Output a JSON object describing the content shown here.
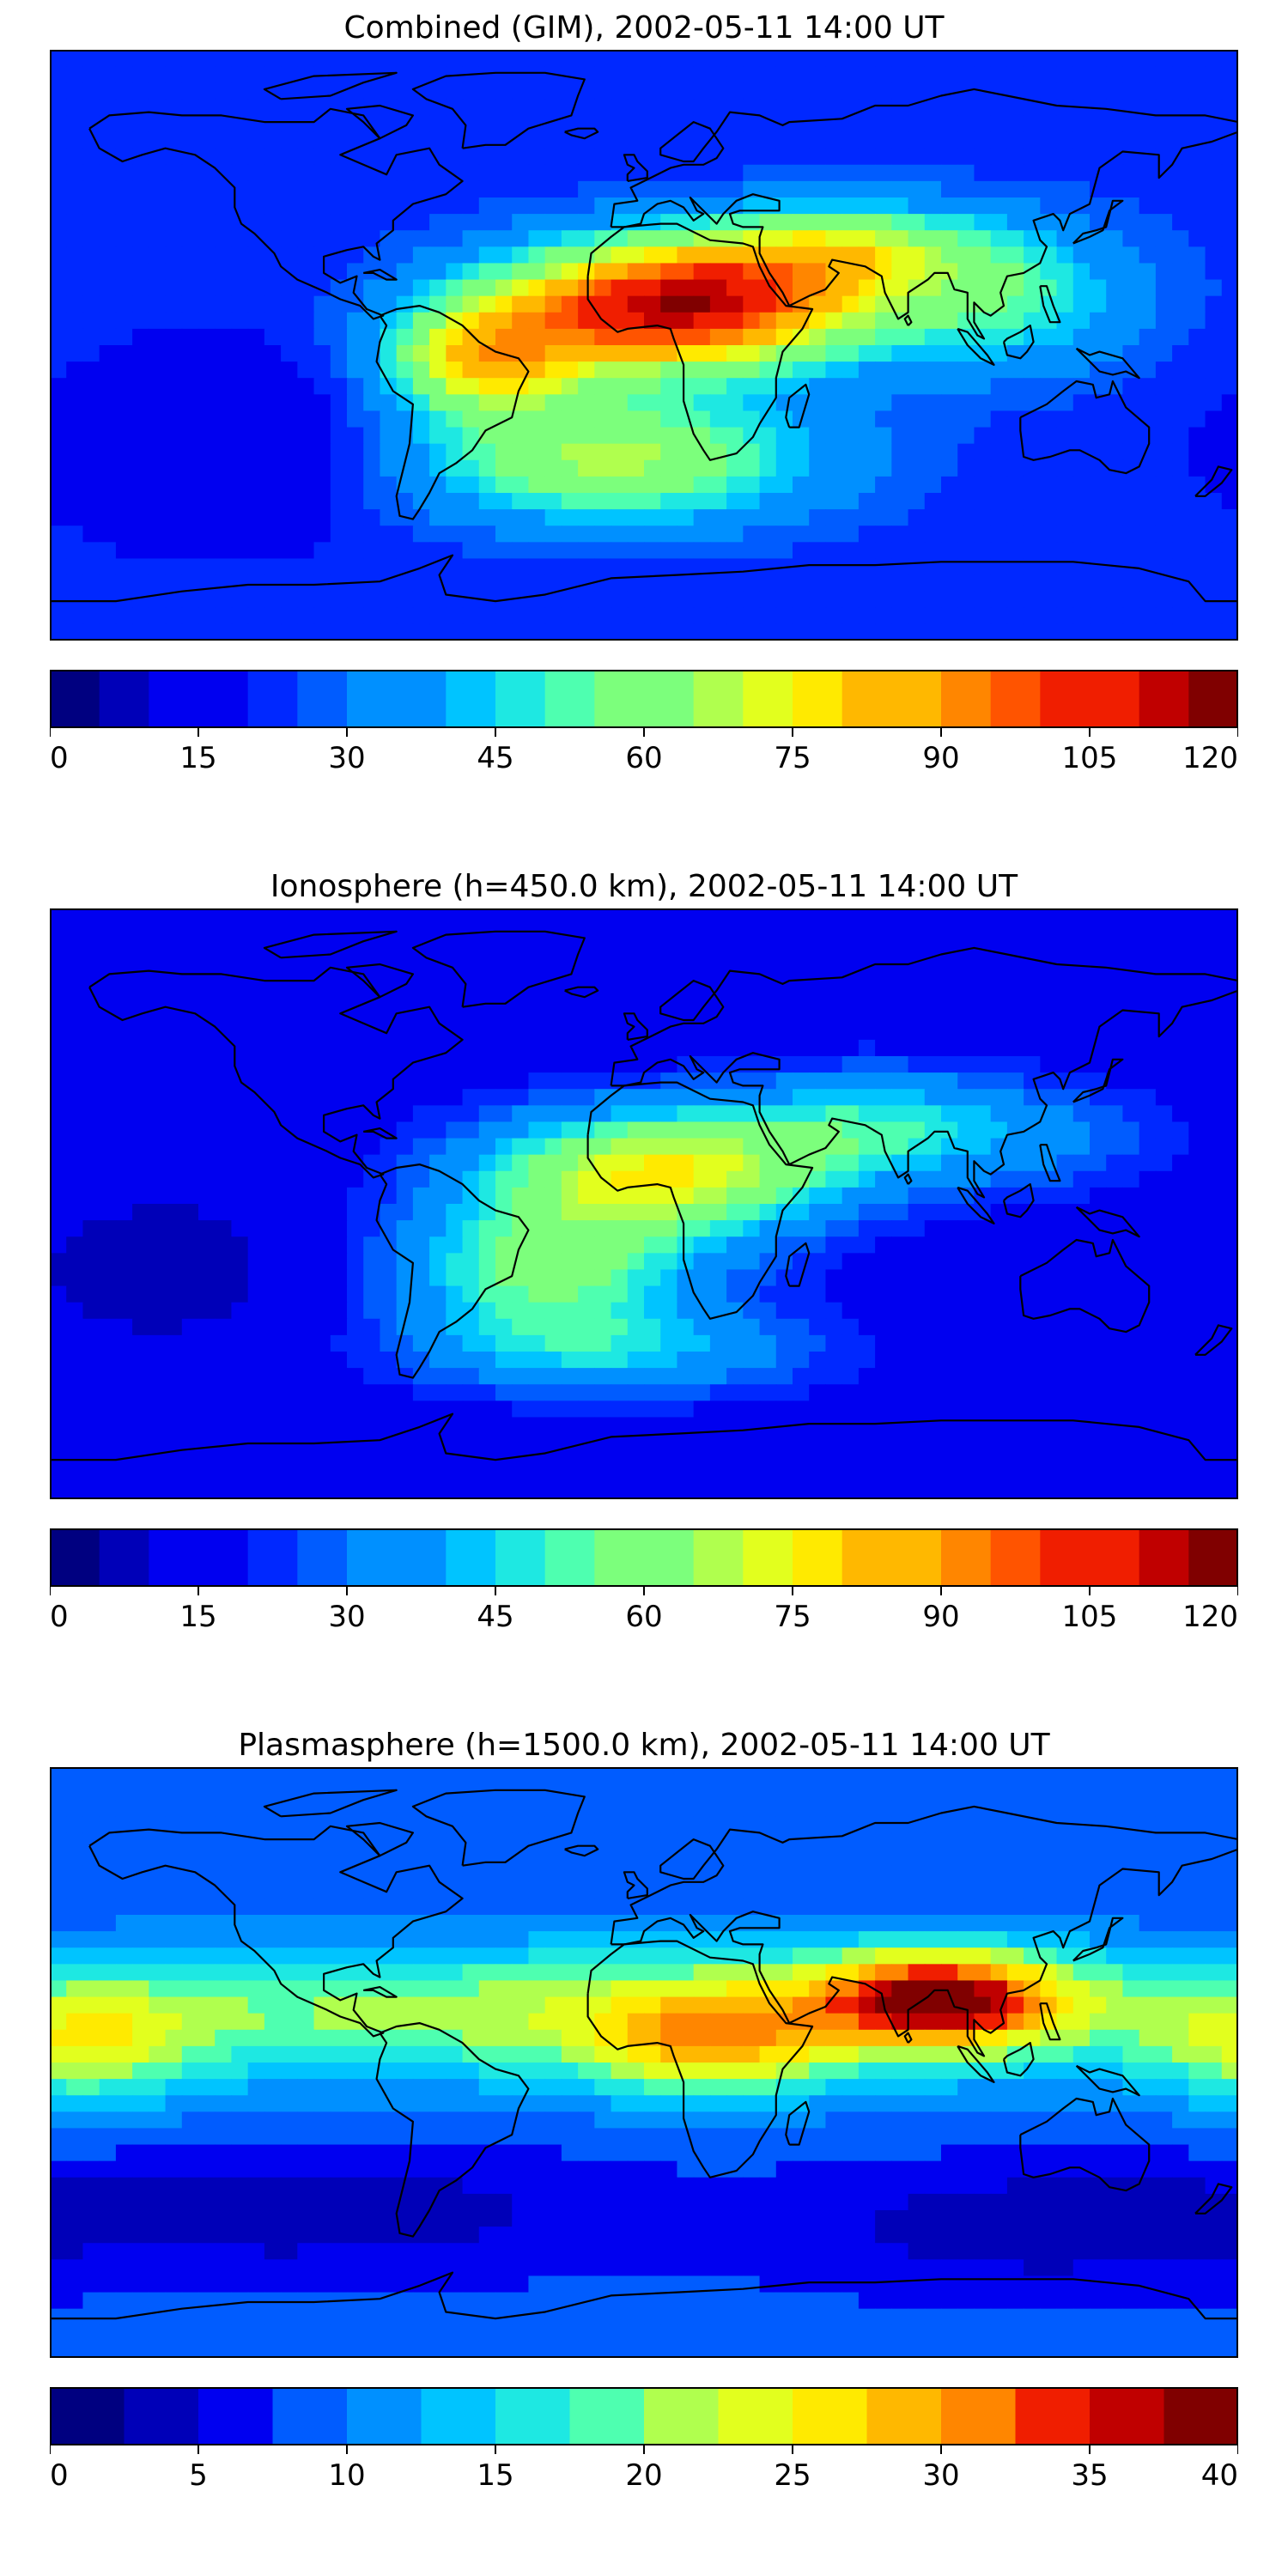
{
  "panels": [
    {
      "title": "Combined (GIM), 2002-05-11 14:00 UT",
      "colorbar": {
        "min": 0,
        "max": 120,
        "levels": 24,
        "ticks": [
          "0",
          "15",
          "30",
          "45",
          "60",
          "75",
          "90",
          "105",
          "120"
        ]
      },
      "field": {
        "background": 22,
        "lon_wrap": true,
        "blobs": [
          {
            "lon": 10,
            "lat": 12,
            "amp": 92,
            "slon": 40,
            "slat": 14
          },
          {
            "lon": -50,
            "lat": -5,
            "amp": 50,
            "slon": 22,
            "slat": 12
          },
          {
            "lon": -10,
            "lat": -35,
            "amp": 45,
            "slon": 45,
            "slat": 14
          },
          {
            "lon": 60,
            "lat": 30,
            "amp": 35,
            "slon": 30,
            "slat": 10
          },
          {
            "lon": 110,
            "lat": 15,
            "amp": 28,
            "slon": 30,
            "slat": 16
          },
          {
            "lon": -120,
            "lat": -30,
            "amp": -12,
            "slon": 40,
            "slat": 20
          }
        ]
      }
    },
    {
      "title": "Ionosphere  (h=450.0 km), 2002-05-11 14:00 UT",
      "colorbar": {
        "min": 0,
        "max": 120,
        "levels": 24,
        "ticks": [
          "0",
          "15",
          "30",
          "45",
          "60",
          "75",
          "90",
          "105",
          "120"
        ]
      },
      "field": {
        "background": 15,
        "lon_wrap": true,
        "blobs": [
          {
            "lon": 5,
            "lat": 10,
            "amp": 58,
            "slon": 40,
            "slat": 14
          },
          {
            "lon": -30,
            "lat": -20,
            "amp": 40,
            "slon": 35,
            "slat": 15
          },
          {
            "lon": -10,
            "lat": -45,
            "amp": 25,
            "slon": 45,
            "slat": 10
          },
          {
            "lon": 70,
            "lat": 25,
            "amp": 25,
            "slon": 30,
            "slat": 12
          },
          {
            "lon": 120,
            "lat": 20,
            "amp": 15,
            "slon": 30,
            "slat": 12
          },
          {
            "lon": -140,
            "lat": -20,
            "amp": -8,
            "slon": 40,
            "slat": 20
          }
        ]
      }
    },
    {
      "title": "Plasmasphere (h=1500.0 km), 2002-05-11 14:00 UT",
      "colorbar": {
        "min": 0,
        "max": 40,
        "levels": 16,
        "ticks": [
          "0",
          "5",
          "10",
          "15",
          "20",
          "25",
          "30",
          "35",
          "40"
        ]
      },
      "field": {
        "background": 8,
        "lon_wrap": true,
        "blobs": [
          {
            "lon": 0,
            "lat": 15,
            "amp": 14,
            "slon": 180,
            "slat": 15
          },
          {
            "lon": 90,
            "lat": 20,
            "amp": 22,
            "slon": 25,
            "slat": 10
          },
          {
            "lon": 20,
            "lat": 5,
            "amp": 12,
            "slon": 25,
            "slat": 12
          },
          {
            "lon": -170,
            "lat": 5,
            "amp": 10,
            "slon": 25,
            "slat": 14
          },
          {
            "lon": -100,
            "lat": -45,
            "amp": -5,
            "slon": 60,
            "slat": 12
          },
          {
            "lon": 120,
            "lat": -50,
            "amp": -5,
            "slon": 50,
            "slat": 12
          }
        ]
      }
    }
  ],
  "colormap": [
    "#000080",
    "#0000b8",
    "#0000f0",
    "#0028ff",
    "#005cff",
    "#0090ff",
    "#00c4ff",
    "#1ee8e2",
    "#4effb0",
    "#7cff7c",
    "#b0ff4e",
    "#e2ff1e",
    "#ffea00",
    "#ffb800",
    "#ff8600",
    "#ff5400",
    "#f01e00",
    "#c00000",
    "#800000"
  ]
}
